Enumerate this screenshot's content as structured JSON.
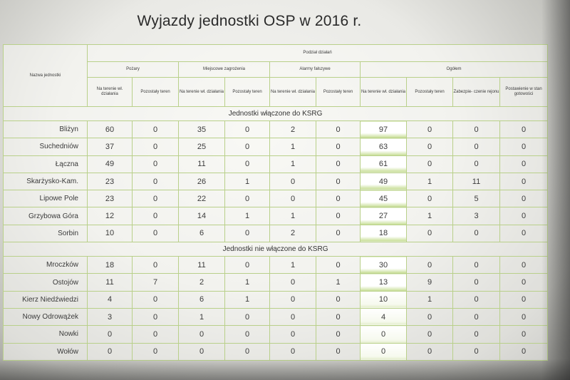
{
  "title": "Wyjazdy jednostki OSP w 2016 r.",
  "header": {
    "unit_col": "Nazwa jednostki",
    "top": "Podział działań",
    "groups": [
      "Pożary",
      "Miejscowe zagrożenia",
      "Alarmy fałszywe",
      "Ogółem"
    ],
    "sub": {
      "na_terenie": "Na terenie wł. działania",
      "pozostaly": "Pozostały teren",
      "zabezpieczenie": "Zabezpie- czenie rejonu",
      "postawienie": "Postawienie w stan gotowości"
    }
  },
  "sections": [
    {
      "label": "Jednostki włączone do KSRG",
      "rows": [
        {
          "name": "Bliżyn",
          "values": [
            "60",
            "0",
            "35",
            "0",
            "2",
            "0",
            "97",
            "0",
            "0",
            "0"
          ]
        },
        {
          "name": "Suchedniów",
          "values": [
            "37",
            "0",
            "25",
            "0",
            "1",
            "0",
            "63",
            "0",
            "0",
            "0"
          ]
        },
        {
          "name": "Łączna",
          "values": [
            "49",
            "0",
            "11",
            "0",
            "1",
            "0",
            "61",
            "0",
            "0",
            "0"
          ]
        },
        {
          "name": "Skarżysko-Kam.",
          "values": [
            "23",
            "0",
            "26",
            "1",
            "0",
            "0",
            "49",
            "1",
            "11",
            "0"
          ]
        },
        {
          "name": "Lipowe Pole",
          "values": [
            "23",
            "0",
            "22",
            "0",
            "0",
            "0",
            "45",
            "0",
            "5",
            "0"
          ]
        },
        {
          "name": "Grzybowa Góra",
          "values": [
            "12",
            "0",
            "14",
            "1",
            "1",
            "0",
            "27",
            "1",
            "3",
            "0"
          ]
        },
        {
          "name": "Sorbin",
          "values": [
            "10",
            "0",
            "6",
            "0",
            "2",
            "0",
            "18",
            "0",
            "0",
            "0"
          ]
        }
      ]
    },
    {
      "label": "Jednostki nie włączone do KSRG",
      "rows": [
        {
          "name": "Mroczków",
          "values": [
            "18",
            "0",
            "11",
            "0",
            "1",
            "0",
            "30",
            "0",
            "0",
            "0"
          ]
        },
        {
          "name": "Ostojów",
          "values": [
            "11",
            "7",
            "2",
            "1",
            "0",
            "1",
            "13",
            "9",
            "0",
            "0"
          ]
        },
        {
          "name": "Kierz Niedźwiedzi",
          "values": [
            "4",
            "0",
            "6",
            "1",
            "0",
            "0",
            "10",
            "1",
            "0",
            "0"
          ]
        },
        {
          "name": "Nowy Odrowążek",
          "values": [
            "3",
            "0",
            "1",
            "0",
            "0",
            "0",
            "4",
            "0",
            "0",
            "0"
          ]
        },
        {
          "name": "Nowki",
          "values": [
            "0",
            "0",
            "0",
            "0",
            "0",
            "0",
            "0",
            "0",
            "0",
            "0"
          ]
        },
        {
          "name": "Wołów",
          "values": [
            "0",
            "0",
            "0",
            "0",
            "0",
            "0",
            "0",
            "0",
            "0",
            "0"
          ]
        }
      ]
    }
  ]
}
